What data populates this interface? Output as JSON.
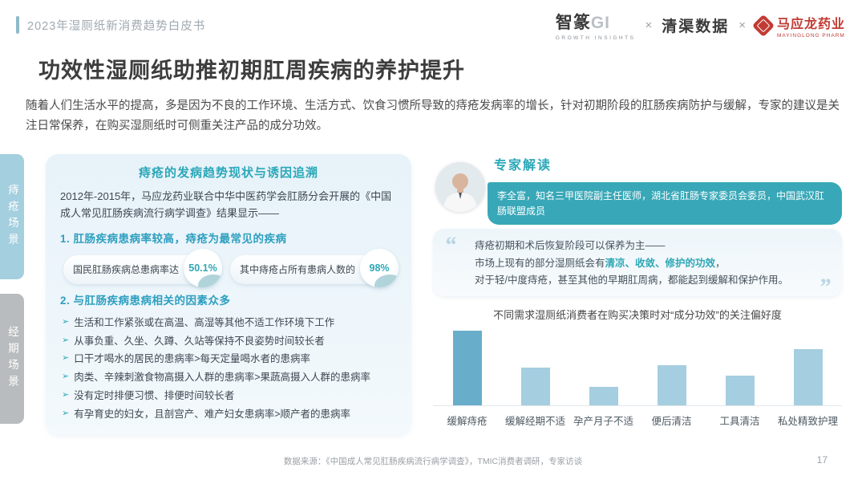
{
  "header": {
    "breadcrumb": "2023年湿厕纸新消费趋势白皮书",
    "logos": {
      "zhizhuan_name": "智篆",
      "zhizhuan_suffix": "GI",
      "zhizhuan_tagline": "GROWTH INSIGHTS",
      "separator": "×",
      "qingqu_name": "清渠数据",
      "mayinglong_name": "马应龙药业",
      "mayinglong_tagline": "MAYINGLONG PHARM"
    }
  },
  "page": {
    "title": "功效性湿厕纸助推初期肛周疾病的养护提升",
    "intro": "随着人们生活水平的提高，多是因为不良的工作环境、生活方式、饮食习惯所导致的痔疮发病率的增长，针对初期阶段的肛肠疾病防护与缓解，专家的建议是关注日常保养，在购买湿厕纸时可侧重关注产品的成分功效。"
  },
  "sidebar": {
    "tabs": [
      {
        "label": "痔疮场景",
        "active": true
      },
      {
        "label": "经期场景",
        "active": false
      }
    ]
  },
  "left_panel": {
    "title": "痔疮的发病趋势现状与诱因追溯",
    "intro": "2012年-2015年，马应龙药业联合中华中医药学会肛肠分会开展的《中国成人常见肛肠疾病流行病学调查》结果显示——",
    "point1": {
      "heading": "1.  肛肠疾病患病率较高，痔疮为最常见的疾病",
      "stats": [
        {
          "label": "国民肛肠疾病总患病率达",
          "value": "50.1%"
        },
        {
          "label": "其中痔疮占所有患病人数的",
          "value": "98%"
        }
      ]
    },
    "point2": {
      "heading": "2.   与肛肠疾病患病相关的因素众多",
      "bullet": "➢",
      "factors": [
        "生活和工作紧张或在高温、高湿等其他不适工作环境下工作",
        "从事负重、久坐、久蹲、久站等保持不良姿势时间较长者",
        "口干才喝水的居民的患病率>每天定量喝水者的患病率",
        "肉类、辛辣刺激食物高摄入人群的患病率>果蔬高摄入人群的患病率",
        "没有定时排便习惯、排便时间较长者",
        "有孕育史的妇女，且剖宫产、难产妇女患病率>顺产者的患病率"
      ]
    }
  },
  "expert": {
    "title": "专家解读",
    "credentials": "李全富，知名三甲医院副主任医师，湖北省肛肠专家委员会委员，中国武汉肛肠联盟成员",
    "quote": {
      "open_quote": "“",
      "close_quote": "”",
      "line1": "痔疮初期和术后恢复阶段可以保养为主——",
      "line2_prefix": "市场上现有的部分湿厕纸会有",
      "line2_highlight": "清凉、收敛、修护的功效",
      "line2_suffix": "，",
      "line3": "对于轻/中度痔疮，甚至其他的早期肛周病，都能起到缓解和保护作用。"
    }
  },
  "chart_data": {
    "type": "bar",
    "title": "不同需求湿厕纸消费者在购买决策时对“成分功效”的关注偏好度",
    "categories": [
      "缓解痔疮",
      "缓解经期不适",
      "孕产月子不适",
      "便后清洁",
      "工具清洁",
      "私处精致护理"
    ],
    "values": [
      100,
      51,
      25,
      54,
      40,
      75
    ],
    "values_estimated": true,
    "xlabel": "",
    "ylabel": "",
    "ylim": [
      0,
      100
    ],
    "grid": false,
    "legend_position": "none",
    "bar_colors": [
      "#68aecb",
      "#a5cee0",
      "#a5cee0",
      "#a5cee0",
      "#a5cee0",
      "#a5cee0"
    ]
  },
  "footer": {
    "source": "数据来源：《中国成人常见肛肠疾病流行病学调查》，TMIC消费者调研，专家访谈",
    "page_number": "17"
  },
  "colors": {
    "accent_teal": "#2aa7b8",
    "heading_blue": "#2e9fc0",
    "tab_active": "#a4cfdf",
    "tab_inactive": "#b9bcbe",
    "banner_bg": "#38a8b8",
    "panel_bg": "#e7f2f9",
    "brand_red": "#c13b34",
    "bar_dark": "#68aecb",
    "bar_light": "#a5cee0"
  }
}
